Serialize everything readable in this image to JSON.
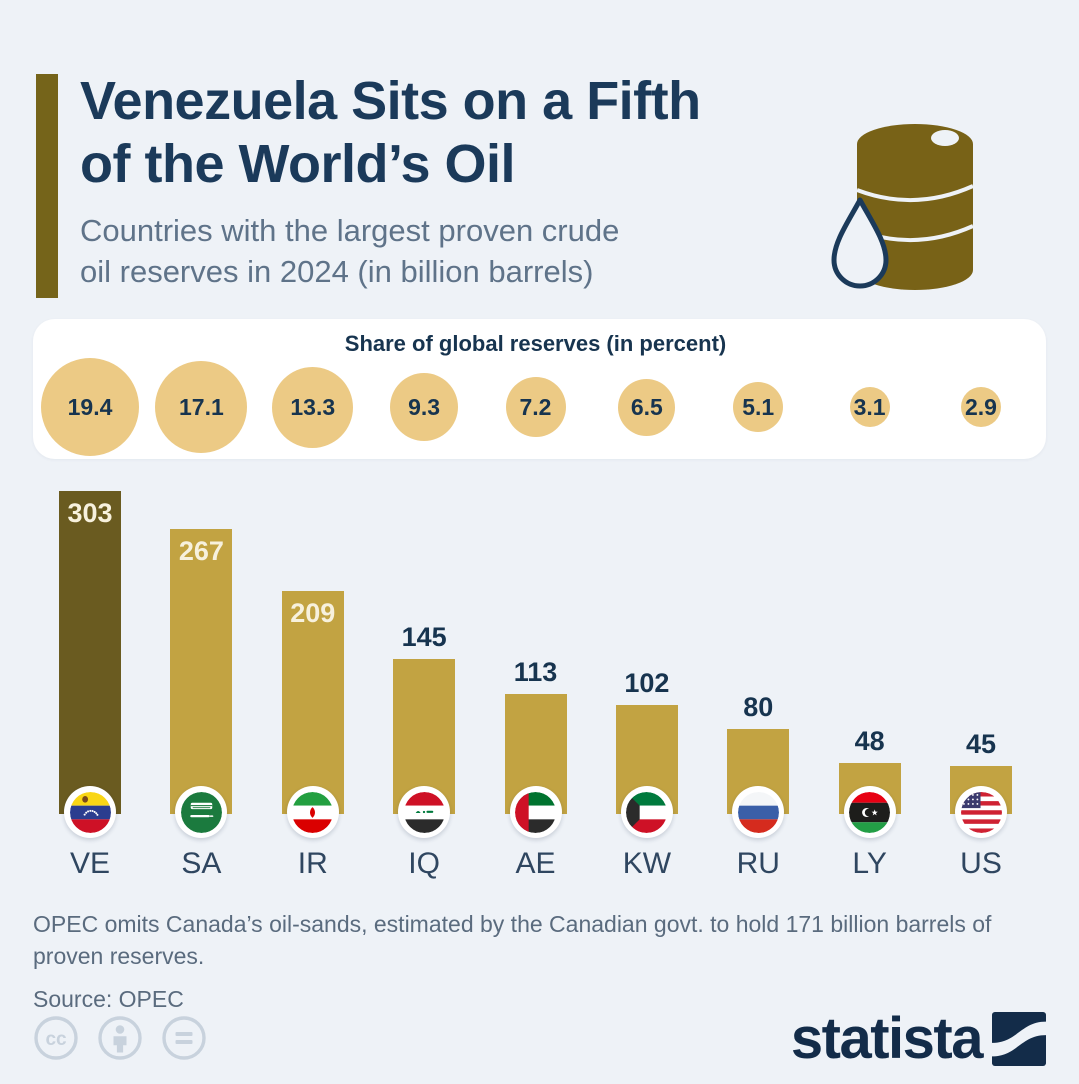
{
  "header": {
    "title_lines": [
      "Venezuela Sits on a Fifth",
      "of the World’s Oil"
    ],
    "subtitle_lines": [
      "Countries with the largest proven crude",
      "oil reserves in 2024 (in billion barrels)"
    ],
    "barrel_icon": "oil-barrel-with-droplet-icon"
  },
  "share_panel": {
    "title": "Share of global reserves (in percent)"
  },
  "chart_data": {
    "type": "bar",
    "title": "Countries with the largest proven crude oil reserves in 2024 (in billion barrels)",
    "unit": "billion barrels",
    "categories": [
      "VE",
      "SA",
      "IR",
      "IQ",
      "AE",
      "KW",
      "RU",
      "LY",
      "US"
    ],
    "values": [
      303,
      267,
      209,
      145,
      113,
      102,
      80,
      48,
      45
    ],
    "share_of_global_reserves_pct": [
      19.4,
      17.1,
      13.3,
      9.3,
      7.2,
      6.5,
      5.1,
      3.1,
      2.9
    ],
    "highlight_category": "VE",
    "bar_color": "#c2a342",
    "highlight_bar_color": "#6a5b20",
    "bubble_color": "#ecca85",
    "inside_label_threshold": 150,
    "grid": false,
    "legend": false
  },
  "footer": {
    "note": "OPEC omits Canada’s oil-sands, estimated by the Canadian govt. to hold 171 billion barrels of proven reserves.",
    "source": "Source: OPEC",
    "brand": "statista"
  },
  "colors": {
    "background": "#eef2f7",
    "title_navy": "#1b3a5a",
    "subtitle_gray": "#5f7389",
    "accent_olive": "#75641a",
    "brand_navy": "#132c49",
    "license_icon_gray": "#c8d2dd"
  }
}
